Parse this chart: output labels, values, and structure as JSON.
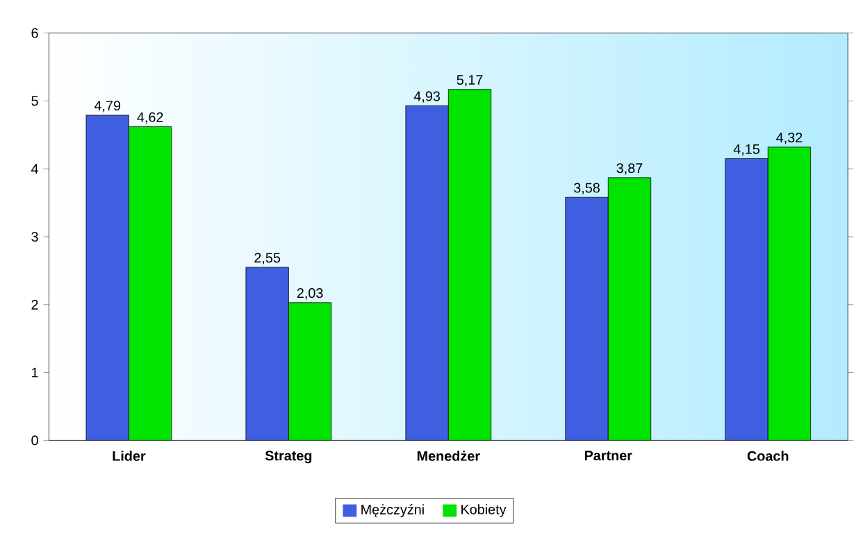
{
  "chart_data": {
    "type": "bar",
    "categories": [
      "Lider",
      "Strateg",
      "Menedżer",
      "Partner",
      "Coach"
    ],
    "series": [
      {
        "name": "Mężczyźni",
        "color": "#3f5fe0",
        "values": [
          4.79,
          2.55,
          4.93,
          3.58,
          4.15
        ],
        "value_labels": [
          "4,79",
          "2,55",
          "4,93",
          "3,58",
          "4,15"
        ]
      },
      {
        "name": "Kobiety",
        "color": "#00e400",
        "values": [
          4.62,
          2.03,
          5.17,
          3.87,
          4.32
        ],
        "value_labels": [
          "4,62",
          "2,03",
          "5,17",
          "3,87",
          "4,32"
        ]
      }
    ],
    "ylim": [
      0,
      6
    ],
    "yticks": [
      0,
      1,
      2,
      3,
      4,
      5,
      6
    ],
    "grid": false,
    "legend": "bottom"
  }
}
